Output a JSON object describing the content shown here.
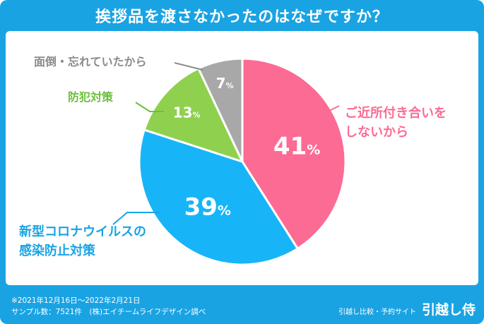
{
  "title": "挨拶品を渡さなかったのはなぜですか？",
  "chart_data": {
    "type": "pie",
    "title": "挨拶品を渡さなかったのはなぜですか？",
    "slices": [
      {
        "label_lines": [
          "ご近所付き合いを",
          "しないから"
        ],
        "value": 41,
        "display": "41",
        "color": "#fc6b94",
        "label_color": "#fc6b94"
      },
      {
        "label_lines": [
          "新型コロナウイルスの",
          "感染防止対策"
        ],
        "value": 39,
        "display": "39",
        "color": "#17b5f8",
        "label_color": "#1aa3e3"
      },
      {
        "label_lines": [
          "防犯対策"
        ],
        "value": 13,
        "display": "13",
        "color": "#8fd14f",
        "label_color": "#6cbf3c"
      },
      {
        "label_lines": [
          "面倒・忘れていたから"
        ],
        "value": 7,
        "display": "7",
        "color": "#a8a8a8",
        "label_color": "#8a8a8a"
      }
    ],
    "percent_sign": "%"
  },
  "footer": {
    "period": "※2021年12月16日～2022年2月21日",
    "sample": "サンプル数：7521件　(株)エイチームライフデザイン調べ"
  },
  "brand": {
    "subtitle": "引越し比較・予約サイト",
    "logo": "引越し侍"
  }
}
